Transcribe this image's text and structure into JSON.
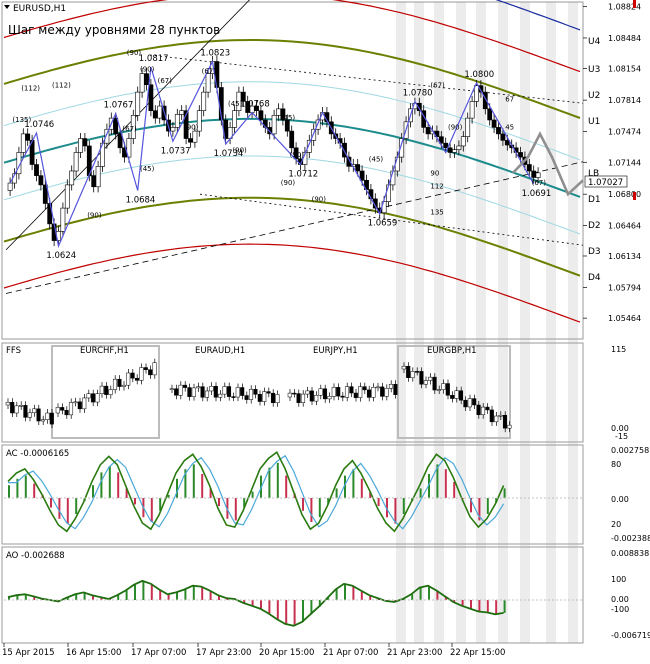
{
  "chart_data": [
    {
      "type": "candlestick",
      "symbol_label": "EURUSD,H1",
      "annotation": "Шаг между уровнями 28 пунктов",
      "annotation_overlap": "28 пунктов",
      "current_price": "1.07027",
      "y_range": [
        1.0525,
        1.0885
      ],
      "price_ticks": [
        "1.08824",
        "1.08484",
        "1.08154",
        "1.07814",
        "1.07474",
        "1.07144",
        "1.06800",
        "1.06464",
        "1.06134",
        "1.05794",
        "1.05464"
      ],
      "levels": [
        {
          "label": "U4",
          "value": 1.0845
        },
        {
          "label": "U3",
          "value": 1.0815
        },
        {
          "label": "U2",
          "value": 1.0787
        },
        {
          "label": "U1",
          "value": 1.0759
        },
        {
          "label": "LB",
          "value": 1.0703
        },
        {
          "label": "D1",
          "value": 1.0675
        },
        {
          "label": "D2",
          "value": 1.0647
        },
        {
          "label": "D3",
          "value": 1.0619
        },
        {
          "label": "D4",
          "value": 1.0591
        }
      ],
      "peak_labels": [
        {
          "text": "1.0746",
          "value": 1.0746
        },
        {
          "text": "1.0767",
          "value": 1.0767
        },
        {
          "text": "1.0817",
          "value": 1.0817
        },
        {
          "text": "1.0684",
          "value": 1.0684
        },
        {
          "text": "1.0624",
          "value": 1.0624
        },
        {
          "text": "1.0737",
          "value": 1.0737
        },
        {
          "text": "1.0734",
          "value": 1.0734
        },
        {
          "text": "1.0823",
          "value": 1.0823
        },
        {
          "text": "1.0768",
          "value": 1.0768
        },
        {
          "text": "1.0712",
          "value": 1.0712
        },
        {
          "text": "1.0780",
          "value": 1.078
        },
        {
          "text": "1.0659",
          "value": 1.0659
        },
        {
          "text": "1.0800",
          "value": 1.08
        },
        {
          "text": "1.0691",
          "value": 1.0691
        }
      ],
      "fib_labels": [
        "(135)",
        "(112)",
        "(90)",
        "(67)",
        "(45)",
        "(90)",
        "(67)",
        "(90)",
        "(67)",
        "(45)",
        "(90)",
        "(90)",
        "(90)",
        "(45)",
        "(90)",
        "(45)",
        "(67)",
        "(90)",
        "(67)",
        "45",
        "90",
        "112",
        "135",
        "67",
        "(112)",
        "(90)"
      ],
      "close": [
        1.0692,
        1.0702,
        1.0725,
        1.0745,
        1.0738,
        1.0712,
        1.07,
        1.069,
        1.067,
        1.0648,
        1.063,
        1.064,
        1.0665,
        1.069,
        1.0705,
        1.0725,
        1.074,
        1.0732,
        1.07,
        1.0688,
        1.071,
        1.0735,
        1.075,
        1.0762,
        1.0745,
        1.073,
        1.072,
        1.074,
        1.0765,
        1.079,
        1.081,
        1.0798,
        1.077,
        1.0762,
        1.0775,
        1.076,
        1.0748,
        1.0752,
        1.0766,
        1.077,
        1.074,
        1.0736,
        1.0748,
        1.077,
        1.079,
        1.081,
        1.0823,
        1.0795,
        1.076,
        1.074,
        1.0752,
        1.077,
        1.079,
        1.078,
        1.0768,
        1.0775,
        1.077,
        1.076,
        1.0752,
        1.0745,
        1.0765,
        1.0772,
        1.076,
        1.0748,
        1.073,
        1.0718,
        1.0712,
        1.0725,
        1.0738,
        1.075,
        1.076,
        1.0768,
        1.0758,
        1.0745,
        1.074,
        1.0735,
        1.072,
        1.071,
        1.0712,
        1.0705,
        1.0695,
        1.0685,
        1.0675,
        1.0665,
        1.066,
        1.0672,
        1.069,
        1.0705,
        1.072,
        1.074,
        1.0758,
        1.0772,
        1.0778,
        1.077,
        1.0752,
        1.0745,
        1.0748,
        1.0742,
        1.0735,
        1.073,
        1.0725,
        1.0728,
        1.0732,
        1.0742,
        1.0762,
        1.078,
        1.0797,
        1.079,
        1.0772,
        1.076,
        1.0752,
        1.0745,
        1.0738,
        1.0733,
        1.073,
        1.0725,
        1.072,
        1.0712,
        1.0705,
        1.0698,
        1.0703
      ],
      "overlay_legend": [
        "FFS",
        "EURCHF,H1",
        "EURAUD,H1",
        "EURJPY,H1",
        "EURGBP,H1"
      ],
      "overlay_scale": [
        "115",
        "0.00",
        "-15"
      ],
      "x_ticks": [
        "15 Apr 2015",
        "16 Apr 15:00",
        "17 Apr 07:00",
        "17 Apr 23:00",
        "20 Apr 15:00",
        "21 Apr 07:00",
        "21 Apr 23:00",
        "22 Apr 15:00"
      ]
    },
    {
      "type": "histogram",
      "title": "AC -0.0006165",
      "y_range": [
        -0.00238,
        0.00275
      ],
      "scale_labels": [
        "0.002758",
        "80",
        "0.00",
        "20",
        "-0.002388"
      ],
      "values": [
        0.0008,
        0.0012,
        0.0014,
        0.0009,
        0.0002,
        -0.0006,
        -0.0013,
        -0.0016,
        -0.001,
        -0.0002,
        0.0008,
        0.0016,
        0.002,
        0.0016,
        0.0006,
        -0.0004,
        -0.0012,
        -0.0015,
        -0.0008,
        0.0002,
        0.0012,
        0.0018,
        0.0021,
        0.0015,
        0.0006,
        -0.0005,
        -0.0013,
        -0.0014,
        -0.0006,
        0.0004,
        0.0014,
        0.0019,
        0.0022,
        0.0014,
        0.0003,
        -0.0008,
        -0.0015,
        -0.0012,
        -0.0004,
        0.0006,
        0.0014,
        0.0018,
        0.0012,
        0.0004,
        -0.0005,
        -0.0012,
        -0.0016,
        -0.001,
        -0.0002,
        0.0006,
        0.0015,
        0.0021,
        0.0018,
        0.001,
        0.0,
        -0.0009,
        -0.0014,
        -0.001,
        -0.0003,
        0.0006
      ]
    },
    {
      "type": "histogram",
      "title": "AO -0.002688",
      "y_range": [
        -0.00671,
        0.00884
      ],
      "scale_labels": [
        "0.008838",
        "100",
        "0.00",
        "-100",
        "-0.006719"
      ],
      "values": [
        0.0006,
        0.001,
        0.0012,
        0.0008,
        0.0003,
        0.0,
        -0.0003,
        0.0005,
        0.0012,
        0.0016,
        0.001,
        0.0006,
        0.0002,
        0.001,
        0.002,
        0.0032,
        0.004,
        0.0034,
        0.0022,
        0.0012,
        0.0016,
        0.0022,
        0.003,
        0.0028,
        0.002,
        0.001,
        0.0004,
        0.0002,
        -0.0006,
        -0.0012,
        -0.0018,
        -0.0028,
        -0.004,
        -0.005,
        -0.0054,
        -0.0046,
        -0.003,
        -0.0014,
        0.0004,
        0.0022,
        0.0034,
        0.003,
        0.002,
        0.001,
        0.0004,
        -0.0002,
        -0.0004,
        0.0002,
        0.0012,
        0.0026,
        0.003,
        0.002,
        0.0008,
        -0.0004,
        -0.0012,
        -0.0018,
        -0.0024,
        -0.0026,
        -0.003,
        -0.0027
      ]
    }
  ]
}
